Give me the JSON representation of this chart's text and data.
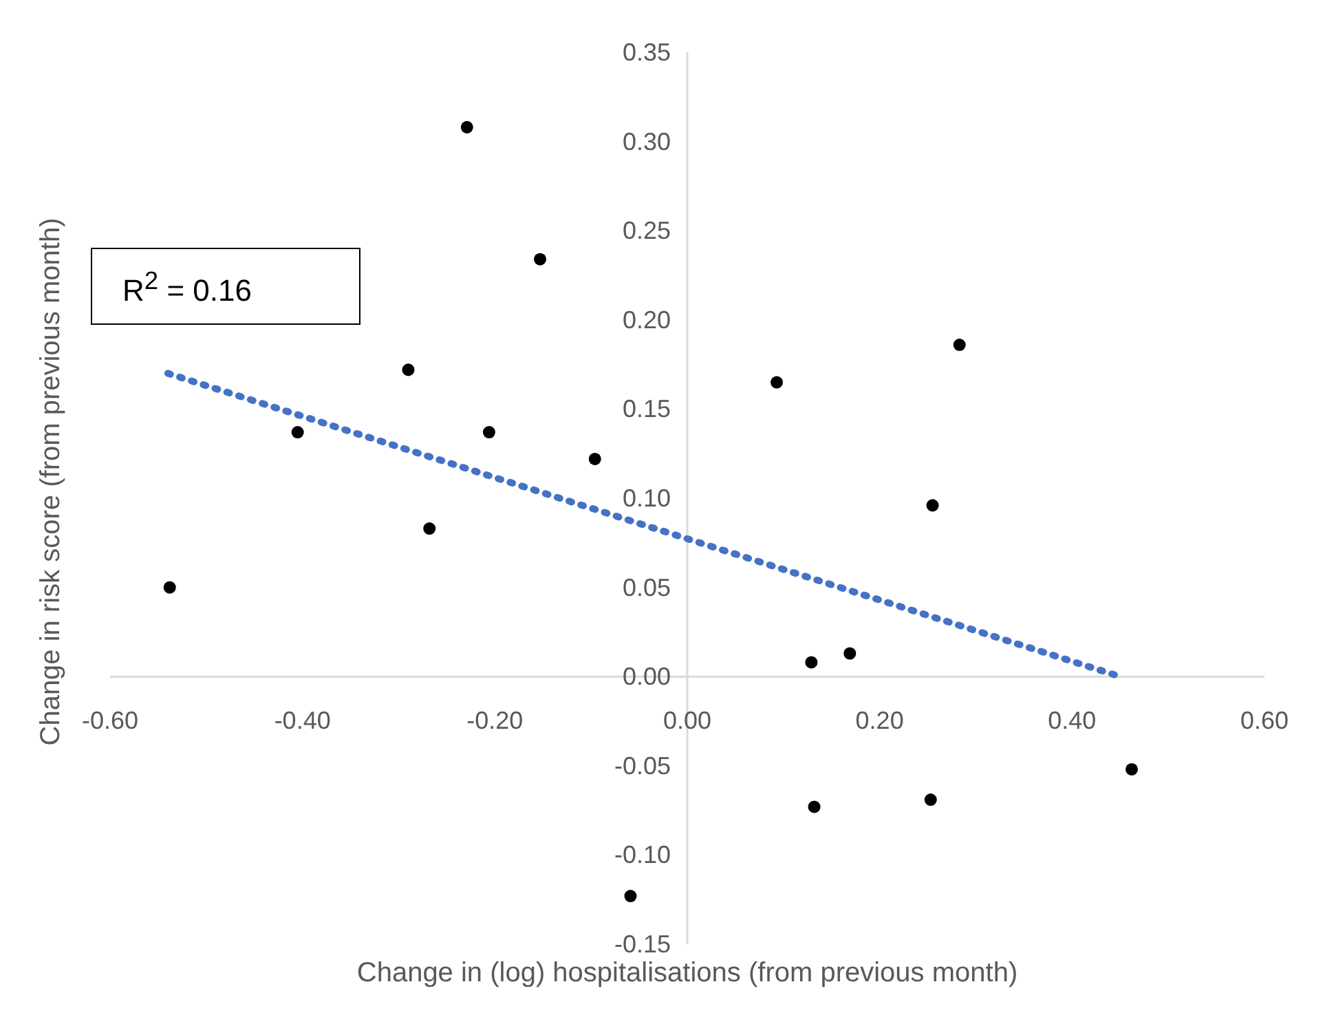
{
  "chart_data": {
    "type": "scatter",
    "xlabel": "Change in (log) hospitalisations (from previous month)",
    "ylabel": "Change in risk score (from previous month)",
    "annotations": [
      "R$^{2}$ = 0.16"
    ],
    "xlim": [
      -0.6,
      0.6
    ],
    "ylim": [
      -0.15,
      0.35
    ],
    "xticks": [
      {
        "value": -0.6,
        "label": "-0.60"
      },
      {
        "value": -0.4,
        "label": "-0.40"
      },
      {
        "value": -0.2,
        "label": "-0.20"
      },
      {
        "value": 0,
        "label": "0.00"
      },
      {
        "value": 0.2,
        "label": "0.20"
      },
      {
        "value": 0.4,
        "label": "0.40"
      },
      {
        "value": 0.6,
        "label": "0.60"
      }
    ],
    "yticks": [
      {
        "value": -0.15,
        "label": "-0.15"
      },
      {
        "value": -0.1,
        "label": "-0.10"
      },
      {
        "value": -0.05,
        "label": "-0.05"
      },
      {
        "value": 0,
        "label": "0.00"
      },
      {
        "value": 0.05,
        "label": "0.05"
      },
      {
        "value": 0.1,
        "label": "0.10"
      },
      {
        "value": 0.15,
        "label": "0.15"
      },
      {
        "value": 0.2,
        "label": "0.20"
      },
      {
        "value": 0.25,
        "label": "0.25"
      },
      {
        "value": 0.3,
        "label": "0.30"
      },
      {
        "value": 0.35,
        "label": "0.35"
      }
    ],
    "grid": false,
    "legend": false,
    "marker": "circle",
    "series": [
      {
        "type": "scatter",
        "color": "#000000",
        "x": [
          -0.538,
          -0.405,
          -0.29,
          -0.268,
          -0.229,
          -0.206,
          -0.153,
          -0.096,
          -0.059,
          0.093,
          0.129,
          0.132,
          0.169,
          0.255,
          0.253,
          0.283,
          0.462
        ],
        "values": [
          0.05,
          0.137,
          0.172,
          0.083,
          0.308,
          0.137,
          0.234,
          0.122,
          -0.123,
          0.165,
          0.008,
          -0.073,
          0.013,
          0.096,
          -0.069,
          0.186,
          -0.052
        ]
      },
      {
        "type": "line",
        "color": "#4472c4",
        "line_style": "dotted",
        "marker": "none",
        "x": [
          -0.54,
          0.45
        ],
        "values": [
          0.17,
          0.0
        ]
      }
    ]
  }
}
